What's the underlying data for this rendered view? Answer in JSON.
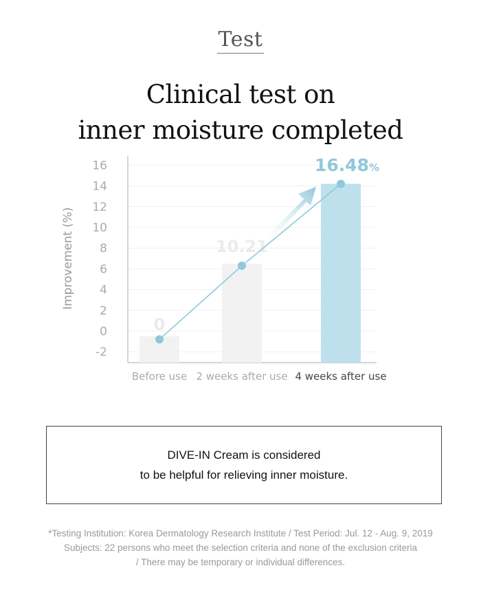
{
  "header": {
    "section_label": "Test",
    "title_line1": "Clinical test on",
    "title_line2": "inner moisture completed"
  },
  "chart_data": {
    "type": "bar",
    "categories": [
      "Before use",
      "2 weeks after use",
      "4 weeks after use"
    ],
    "values": [
      0,
      10.21,
      16.48
    ],
    "bar_heights": [
      -0.5,
      6.5,
      14.2
    ],
    "line_points": [
      -0.8,
      6.3,
      14.2
    ],
    "data_labels": [
      "0",
      "10.21",
      "16.48"
    ],
    "value_suffix": "%",
    "ylabel": "Improvement (%)",
    "yticks": [
      "16",
      "14",
      "12",
      "10",
      "8",
      "6",
      "4",
      "2",
      "0",
      "-2"
    ],
    "ylim": [
      -2.7,
      17
    ],
    "grid": true,
    "colors": {
      "bar_muted": "#f2f2f2",
      "bar_highlight": "#bde0ec",
      "line": "#8fc8db",
      "highlight_text": "#8fc8db",
      "muted_label": "#ebebeb",
      "tick_muted": "#aaaaaa",
      "tick_highlight": "#444444"
    }
  },
  "note": {
    "line1": "DIVE-IN Cream is considered",
    "line2": "to be helpful for relieving inner moisture."
  },
  "footnote": {
    "line1": "*Testing Institution: Korea Dermatology Research Institute / Test Period: Jul. 12 - Aug. 9, 2019",
    "line2": "Subjects: 22 persons who meet the selection criteria and none of the exclusion criteria",
    "line3": "/ There may be temporary or individual differences."
  }
}
